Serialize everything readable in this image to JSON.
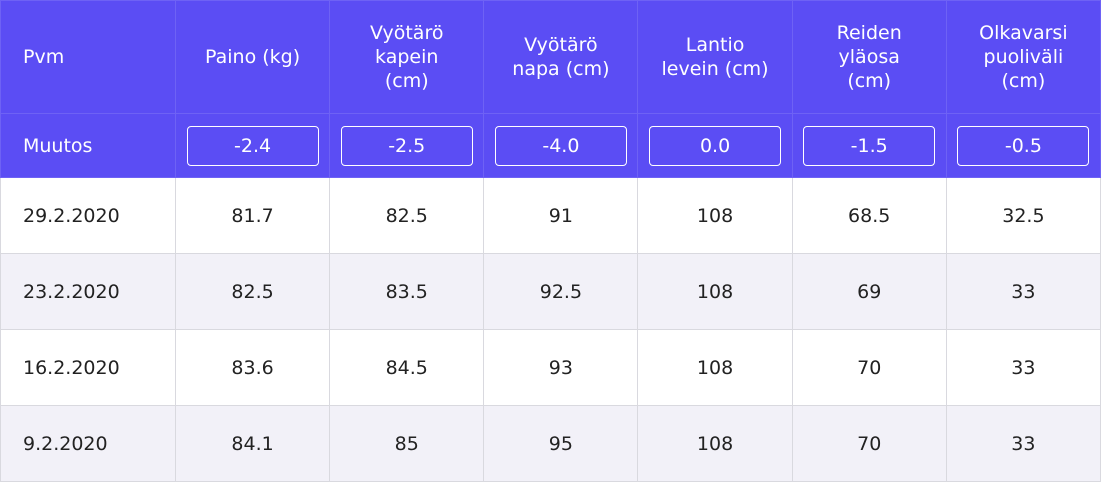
{
  "table": {
    "headers": [
      [
        "Pvm"
      ],
      [
        "Paino (kg)"
      ],
      [
        "Vyötärö",
        "kapein",
        "(cm)"
      ],
      [
        "Vyötärö",
        "napa (cm)"
      ],
      [
        "Lantio",
        "levein (cm)"
      ],
      [
        "Reiden",
        "yläosa",
        "(cm)"
      ],
      [
        "Olkavarsi",
        "puoliväli",
        "(cm)"
      ]
    ],
    "change_label": "Muutos",
    "changes": [
      "-2.4",
      "-2.5",
      "-4.0",
      "0.0",
      "-1.5",
      "-0.5"
    ],
    "rows": [
      [
        "29.2.2020",
        "81.7",
        "82.5",
        "91",
        "108",
        "68.5",
        "32.5"
      ],
      [
        "23.2.2020",
        "82.5",
        "83.5",
        "92.5",
        "108",
        "69",
        "33"
      ],
      [
        "16.2.2020",
        "83.6",
        "84.5",
        "93",
        "108",
        "70",
        "33"
      ],
      [
        "9.2.2020",
        "84.1",
        "85",
        "95",
        "108",
        "70",
        "33"
      ]
    ]
  }
}
